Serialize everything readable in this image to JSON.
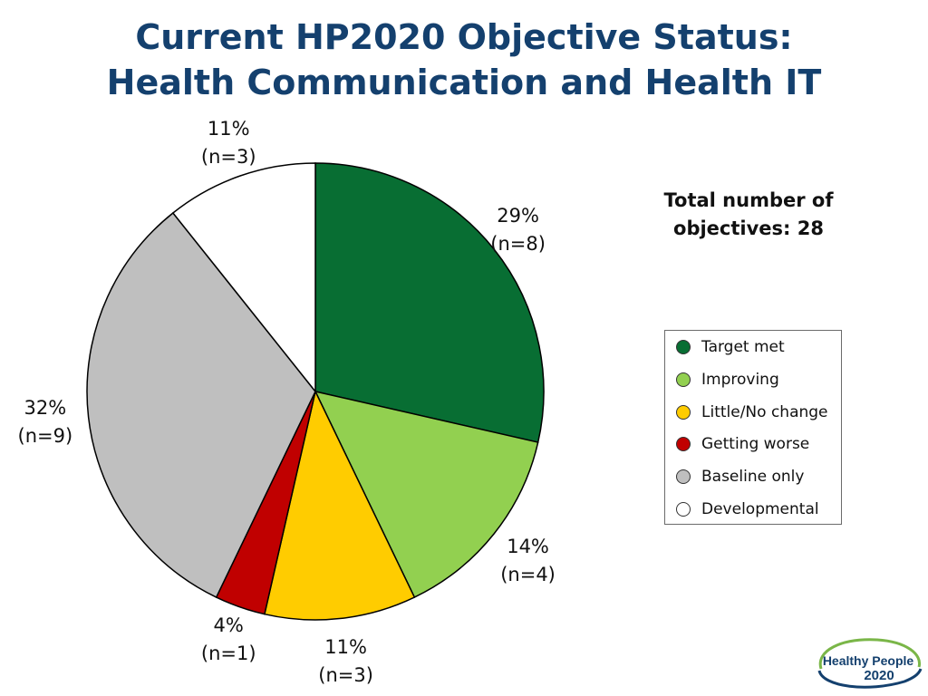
{
  "title_line1": "Current HP2020 Objective Status:",
  "title_line2": "Health Communication and Health IT",
  "total_label_line1": "Total number of",
  "total_label_line2": "objectives: 28",
  "logo": {
    "line1": "Healthy People",
    "line2": "2020"
  },
  "chart_data": {
    "type": "pie",
    "title": "Current HP2020 Objective Status: Health Communication and Health IT",
    "total": 28,
    "start": "12 o'clock, clockwise",
    "legend_position": "right",
    "slices": [
      {
        "name": "Target met",
        "value": 8,
        "pct_label": "29%",
        "n_label": "(n=8)",
        "color": "#086e33"
      },
      {
        "name": "Improving",
        "value": 4,
        "pct_label": "14%",
        "n_label": "(n=4)",
        "color": "#92d050"
      },
      {
        "name": "Little/No change",
        "value": 3,
        "pct_label": "11%",
        "n_label": "(n=3)",
        "color": "#ffcc00"
      },
      {
        "name": "Getting worse",
        "value": 1,
        "pct_label": "4%",
        "n_label": "(n=1)",
        "color": "#c00000"
      },
      {
        "name": "Baseline only",
        "value": 9,
        "pct_label": "32%",
        "n_label": "(n=9)",
        "color": "#bfbfbf"
      },
      {
        "name": "Developmental",
        "value": 3,
        "pct_label": "11%",
        "n_label": "(n=3)",
        "color": "#ffffff"
      }
    ]
  }
}
